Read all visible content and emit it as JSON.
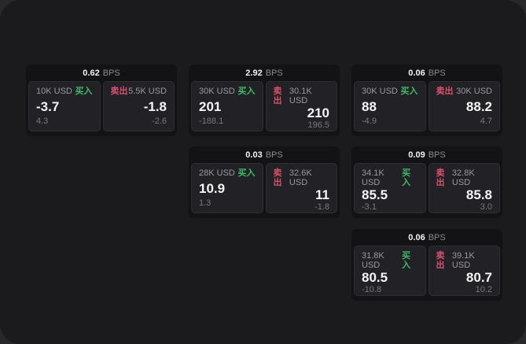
{
  "window": {
    "background": "#1b1b1d",
    "outer_background": "#28282b"
  },
  "labels": {
    "bps_unit": "BPS",
    "buy": "买入",
    "sell": "卖出"
  },
  "colors": {
    "buy": "#3dbb68",
    "sell": "#d8516c",
    "card_background": "#131315",
    "panel_background": "#222226"
  },
  "cards": [
    {
      "bps": "0.62",
      "buy": {
        "amount": "10K USD",
        "price": "-3.7",
        "delta": "4.3"
      },
      "sell": {
        "amount": "5.5K USD",
        "price": "-1.8",
        "delta": "-2.6"
      }
    },
    {
      "bps": "2.92",
      "buy": {
        "amount": "30K USD",
        "price": "201",
        "delta": "-188.1"
      },
      "sell": {
        "amount": "30.1K USD",
        "price": "210",
        "delta": "196.5"
      }
    },
    {
      "bps": "0.06",
      "buy": {
        "amount": "30K USD",
        "price": "88",
        "delta": "-4.9"
      },
      "sell": {
        "amount": "30K USD",
        "price": "88.2",
        "delta": "4.7"
      }
    },
    {
      "bps": "0.03",
      "buy": {
        "amount": "28K USD",
        "price": "10.9",
        "delta": "1.3"
      },
      "sell": {
        "amount": "32.6K USD",
        "price": "11",
        "delta": "-1.8"
      }
    },
    {
      "bps": "0.09",
      "buy": {
        "amount": "34.1K USD",
        "price": "85.5",
        "delta": "-3.1"
      },
      "sell": {
        "amount": "32.8K USD",
        "price": "85.8",
        "delta": "3.0"
      }
    },
    {
      "bps": "0.06",
      "buy": {
        "amount": "31.8K USD",
        "price": "80.5",
        "delta": "-10.8"
      },
      "sell": {
        "amount": "39.1K USD",
        "price": "80.7",
        "delta": "10.2"
      }
    }
  ]
}
